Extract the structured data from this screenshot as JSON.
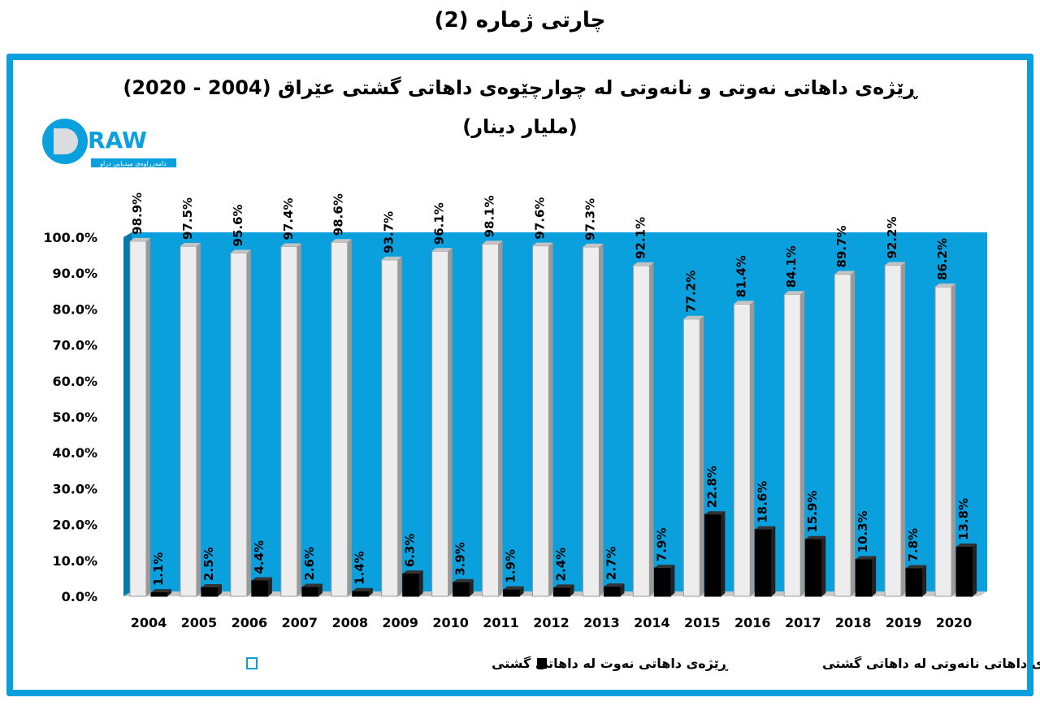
{
  "page_title": "چارتی ژمارە (2)",
  "logo": {
    "text": "DRAW",
    "tagline": "دامەزراوەی میدیایی دراو",
    "color": "#0aa0dd"
  },
  "chart_data": {
    "type": "bar",
    "title": "ڕێژەی داهاتی نەوتی و نانەوتی لە چوارچێوەی داهاتی گشتی عێراق (2004 - 2020)",
    "subtitle": "(ملیار دینار)",
    "categories": [
      "2004",
      "2005",
      "2006",
      "2007",
      "2008",
      "2009",
      "2010",
      "2011",
      "2012",
      "2013",
      "2014",
      "2015",
      "2016",
      "2017",
      "2018",
      "2019",
      "2020"
    ],
    "series": [
      {
        "name": "ڕێژەی داهاتی نەوت لە داهاتی گشتی",
        "color": "#ededed",
        "values": [
          98.9,
          97.5,
          95.6,
          97.4,
          98.6,
          93.7,
          96.1,
          98.1,
          97.6,
          97.3,
          92.1,
          77.2,
          81.4,
          84.1,
          89.7,
          92.2,
          86.2
        ]
      },
      {
        "name": "ڕێژەی داهاتی نانەوتی لە داهاتی گشتی",
        "color": "#000000",
        "values": [
          1.1,
          2.5,
          4.4,
          2.6,
          1.4,
          6.3,
          3.9,
          1.9,
          2.4,
          2.7,
          7.9,
          22.8,
          18.6,
          15.9,
          10.3,
          7.8,
          13.8
        ]
      }
    ],
    "yticks": [
      "0.0%",
      "10.0%",
      "20.0%",
      "30.0%",
      "40.0%",
      "50.0%",
      "60.0%",
      "70.0%",
      "80.0%",
      "90.0%",
      "100.0%"
    ],
    "ylim": [
      0,
      100
    ],
    "background": "#0aa0dd",
    "grid": false,
    "legend": "bottom",
    "style": "3d-column"
  }
}
